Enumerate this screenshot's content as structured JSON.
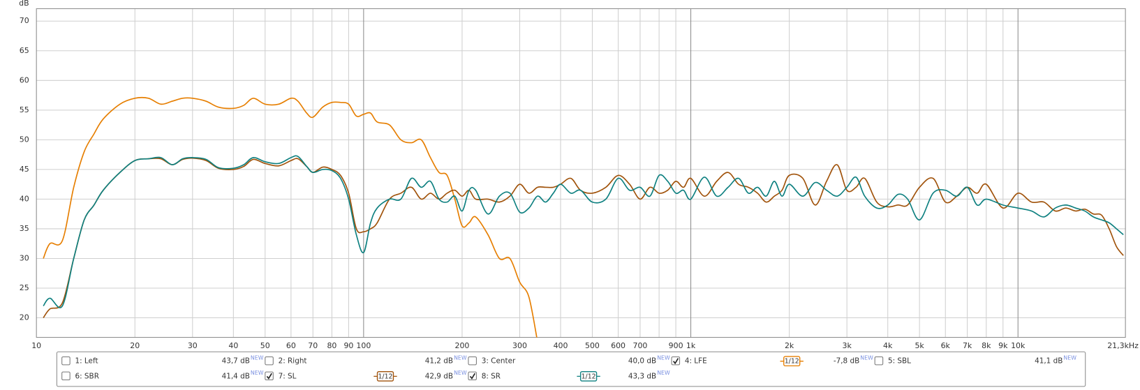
{
  "chart_data": {
    "type": "line",
    "ylabel": "dB",
    "xscale": "log",
    "grid": true,
    "new_tag": "NEW",
    "xlim": [
      10,
      21300
    ],
    "ylim": [
      16.7,
      72.1
    ],
    "yticks": [
      20,
      25,
      30,
      35,
      40,
      45,
      50,
      55,
      60,
      65,
      70
    ],
    "xticks": [
      10,
      20,
      30,
      40,
      50,
      60,
      70,
      80,
      90,
      100,
      200,
      300,
      400,
      500,
      600,
      700,
      900,
      {
        "value": 1000,
        "label": "1k"
      },
      {
        "value": 2000,
        "label": "2k"
      },
      {
        "value": 3000,
        "label": "3k"
      },
      {
        "value": 4000,
        "label": "4k"
      },
      {
        "value": 5000,
        "label": "5k"
      },
      {
        "value": 6000,
        "label": "6k"
      },
      {
        "value": 7000,
        "label": "7k"
      },
      {
        "value": 8000,
        "label": "8k"
      },
      {
        "value": 9000,
        "label": "9k"
      },
      {
        "value": 10000,
        "label": "10k"
      },
      {
        "value": 21300,
        "label": "21,3kHz"
      }
    ],
    "xminor_ticks": [
      800
    ],
    "x": [
      10.5,
      11,
      12,
      13,
      14,
      15,
      16,
      18,
      20,
      22,
      24,
      26,
      28,
      30,
      33,
      36,
      40,
      43,
      46,
      50,
      55,
      60,
      63,
      67,
      70,
      75,
      80,
      85,
      90,
      95,
      100,
      105,
      110,
      120,
      130,
      140,
      150,
      160,
      170,
      180,
      190,
      200,
      210,
      220,
      240,
      260,
      280,
      300,
      320,
      340,
      360,
      380,
      400,
      430,
      460,
      500,
      550,
      600,
      650,
      700,
      750,
      800,
      850,
      900,
      950,
      1000,
      1100,
      1200,
      1300,
      1400,
      1500,
      1600,
      1700,
      1800,
      1900,
      2000,
      2200,
      2400,
      2600,
      2800,
      3000,
      3200,
      3400,
      3700,
      4000,
      4300,
      4600,
      5000,
      5500,
      6000,
      6500,
      7000,
      7500,
      8000,
      9000,
      10000,
      11000,
      12000,
      13000,
      14000,
      15000,
      16000,
      17000,
      18000,
      19000,
      20000,
      21000
    ],
    "series": [
      {
        "name": "1: Left",
        "level": "43,7 dB",
        "checked": false,
        "color": "#c00000"
      },
      {
        "name": "2: Right",
        "level": "41,2 dB",
        "checked": false,
        "color": "#2e9a2e"
      },
      {
        "name": "3: Center",
        "level": "40,0 dB",
        "checked": false,
        "color": "#4848d8"
      },
      {
        "name": "4: LFE",
        "level": "-7,8 dB",
        "checked": true,
        "color": "#e67e00",
        "smoothing": "1/12",
        "values": [
          30,
          32.5,
          33,
          42,
          48,
          51,
          53.5,
          56,
          57,
          57,
          56,
          56.5,
          57,
          57,
          56.5,
          55.5,
          55.3,
          55.8,
          57,
          56,
          56,
          57,
          56.5,
          54.5,
          53.8,
          55.5,
          56.3,
          56.3,
          56,
          54,
          54.3,
          54.5,
          53,
          52.5,
          50,
          49.5,
          50,
          47,
          44.5,
          44,
          40,
          35.5,
          36,
          37,
          34,
          30,
          30,
          26,
          23.5,
          16,
          null,
          null,
          null,
          null,
          null,
          null,
          null,
          null,
          null,
          null,
          null,
          null,
          null,
          null,
          null,
          null,
          null,
          null,
          null,
          null,
          null,
          null,
          null,
          null,
          null,
          null,
          null,
          null,
          null,
          null,
          null,
          null,
          null,
          null,
          null,
          null,
          null,
          null,
          null,
          null,
          null,
          null,
          null,
          null,
          null,
          null,
          null,
          null,
          null,
          null,
          null,
          null,
          null,
          null,
          null,
          null,
          null
        ]
      },
      {
        "name": "5: SBL",
        "level": "41,1 dB",
        "checked": false,
        "color": "#3aa02a"
      },
      {
        "name": "6: SBR",
        "level": "41,4 dB",
        "checked": false,
        "color": "#2070d0"
      },
      {
        "name": "7: SL",
        "level": "42,9 dB",
        "checked": true,
        "color": "#a0520a",
        "smoothing": "1/12",
        "values": [
          20,
          21.5,
          22.5,
          30,
          36.5,
          39,
          41.5,
          44.5,
          46.5,
          46.8,
          46.8,
          45.8,
          46.7,
          46.9,
          46.5,
          45.2,
          45,
          45.5,
          46.7,
          46,
          45.6,
          46.5,
          46.8,
          45.5,
          44.5,
          45.4,
          45,
          44,
          41,
          35,
          34.5,
          35,
          36,
          40,
          41,
          42,
          40,
          41,
          40,
          41,
          41.5,
          40.5,
          41.5,
          40,
          40,
          39.5,
          40.5,
          42.5,
          41,
          42,
          42,
          42,
          42.5,
          43.5,
          41.5,
          41,
          42,
          44,
          42.5,
          40,
          42,
          41,
          41.5,
          43,
          42,
          43.5,
          40.5,
          43,
          44.5,
          42.5,
          42,
          41,
          39.5,
          40.5,
          41.5,
          44,
          43.5,
          39,
          43,
          45.8,
          41.5,
          42,
          43.5,
          39.5,
          38.7,
          39,
          39,
          42,
          43.5,
          39.5,
          40.5,
          42,
          41,
          42.5,
          38.5,
          41,
          39.5,
          39.5,
          38,
          38.5,
          38,
          38.3,
          37.5,
          37.3,
          35,
          32,
          30.5
        ]
      },
      {
        "name": "8: SR",
        "level": "43,3 dB",
        "checked": true,
        "color": "#0e8080",
        "smoothing": "1/12",
        "values": [
          22,
          23.3,
          22,
          30,
          36.5,
          39,
          41.5,
          44.5,
          46.5,
          46.8,
          47,
          45.8,
          46.8,
          47,
          46.7,
          45.3,
          45.2,
          45.8,
          47,
          46.3,
          46,
          47,
          47.2,
          45.5,
          44.5,
          45,
          44.8,
          43.5,
          40,
          34,
          31,
          36,
          38.5,
          40,
          40,
          43.5,
          42,
          43,
          40,
          39.5,
          40.5,
          38,
          41.5,
          41.5,
          37.5,
          40.5,
          41,
          37.8,
          38.5,
          40.5,
          39.5,
          41,
          42.5,
          41,
          41.5,
          39.5,
          40,
          43.5,
          41.5,
          42,
          40.5,
          44,
          43,
          41,
          41.5,
          40,
          43.7,
          40.5,
          42,
          43.5,
          41,
          42,
          40.5,
          43,
          40.5,
          42.5,
          40.5,
          42.8,
          41.5,
          40.5,
          42,
          43.7,
          40.5,
          38.5,
          39,
          40.8,
          40,
          36.5,
          41,
          41.5,
          40.5,
          42,
          39,
          40,
          39,
          38.5,
          38,
          37,
          38.5,
          39,
          38.5,
          38,
          37,
          36.5,
          36,
          35,
          34
        ]
      }
    ]
  }
}
